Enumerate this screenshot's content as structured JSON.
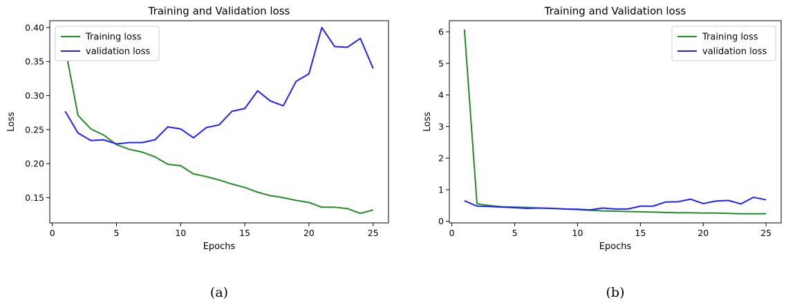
{
  "chart_data": [
    {
      "type": "line",
      "title": "Training and Validation loss",
      "xlabel": "Epochs",
      "ylabel": "Loss",
      "caption": "(a)",
      "xlim": [
        -0.2,
        26.2
      ],
      "ylim": [
        0.113,
        0.41
      ],
      "xticks": [
        0,
        5,
        10,
        15,
        20,
        25
      ],
      "yticks": [
        0.15,
        0.2,
        0.25,
        0.3,
        0.35,
        0.4
      ],
      "ytick_labels": [
        "0.15",
        "0.20",
        "0.25",
        "0.30",
        "0.35",
        "0.40"
      ],
      "legend_position": "top-left",
      "x": [
        1,
        2,
        3,
        4,
        5,
        6,
        7,
        8,
        9,
        10,
        11,
        12,
        13,
        14,
        15,
        16,
        17,
        18,
        19,
        20,
        21,
        22,
        23,
        24,
        25
      ],
      "series": [
        {
          "name": "Training loss",
          "color": "#228B22",
          "values": [
            0.37,
            0.271,
            0.251,
            0.242,
            0.228,
            0.221,
            0.217,
            0.21,
            0.199,
            0.197,
            0.185,
            0.181,
            0.176,
            0.17,
            0.165,
            0.158,
            0.153,
            0.15,
            0.146,
            0.143,
            0.136,
            0.136,
            0.134,
            0.127,
            0.132
          ]
        },
        {
          "name": "validation loss",
          "color": "#1f1fff",
          "values": [
            0.277,
            0.245,
            0.234,
            0.235,
            0.229,
            0.231,
            0.231,
            0.235,
            0.254,
            0.251,
            0.238,
            0.253,
            0.257,
            0.277,
            0.281,
            0.307,
            0.292,
            0.285,
            0.321,
            0.332,
            0.4,
            0.372,
            0.371,
            0.384,
            0.34
          ]
        }
      ]
    },
    {
      "type": "line",
      "title": "Training and Validation loss",
      "xlabel": "Epochs",
      "ylabel": "Loss",
      "caption": "(b)",
      "xlim": [
        -0.2,
        26.2
      ],
      "ylim": [
        -0.05,
        6.35
      ],
      "xticks": [
        0,
        5,
        10,
        15,
        20,
        25
      ],
      "yticks": [
        0,
        1,
        2,
        3,
        4,
        5,
        6
      ],
      "ytick_labels": [
        "0",
        "1",
        "2",
        "3",
        "4",
        "5",
        "6"
      ],
      "legend_position": "top-right",
      "x": [
        1,
        2,
        3,
        4,
        5,
        6,
        7,
        8,
        9,
        10,
        11,
        12,
        13,
        14,
        15,
        16,
        17,
        18,
        19,
        20,
        21,
        22,
        23,
        24,
        25
      ],
      "series": [
        {
          "name": "Training loss",
          "color": "#228B22",
          "values": [
            6.07,
            0.55,
            0.5,
            0.46,
            0.45,
            0.44,
            0.42,
            0.41,
            0.39,
            0.37,
            0.35,
            0.33,
            0.32,
            0.31,
            0.3,
            0.29,
            0.28,
            0.27,
            0.27,
            0.26,
            0.26,
            0.25,
            0.24,
            0.24,
            0.24
          ]
        },
        {
          "name": "validation loss",
          "color": "#1f1fff",
          "values": [
            0.65,
            0.48,
            0.47,
            0.45,
            0.43,
            0.41,
            0.42,
            0.41,
            0.39,
            0.38,
            0.36,
            0.42,
            0.39,
            0.39,
            0.48,
            0.48,
            0.61,
            0.62,
            0.7,
            0.56,
            0.64,
            0.66,
            0.55,
            0.76,
            0.68
          ]
        }
      ]
    }
  ]
}
